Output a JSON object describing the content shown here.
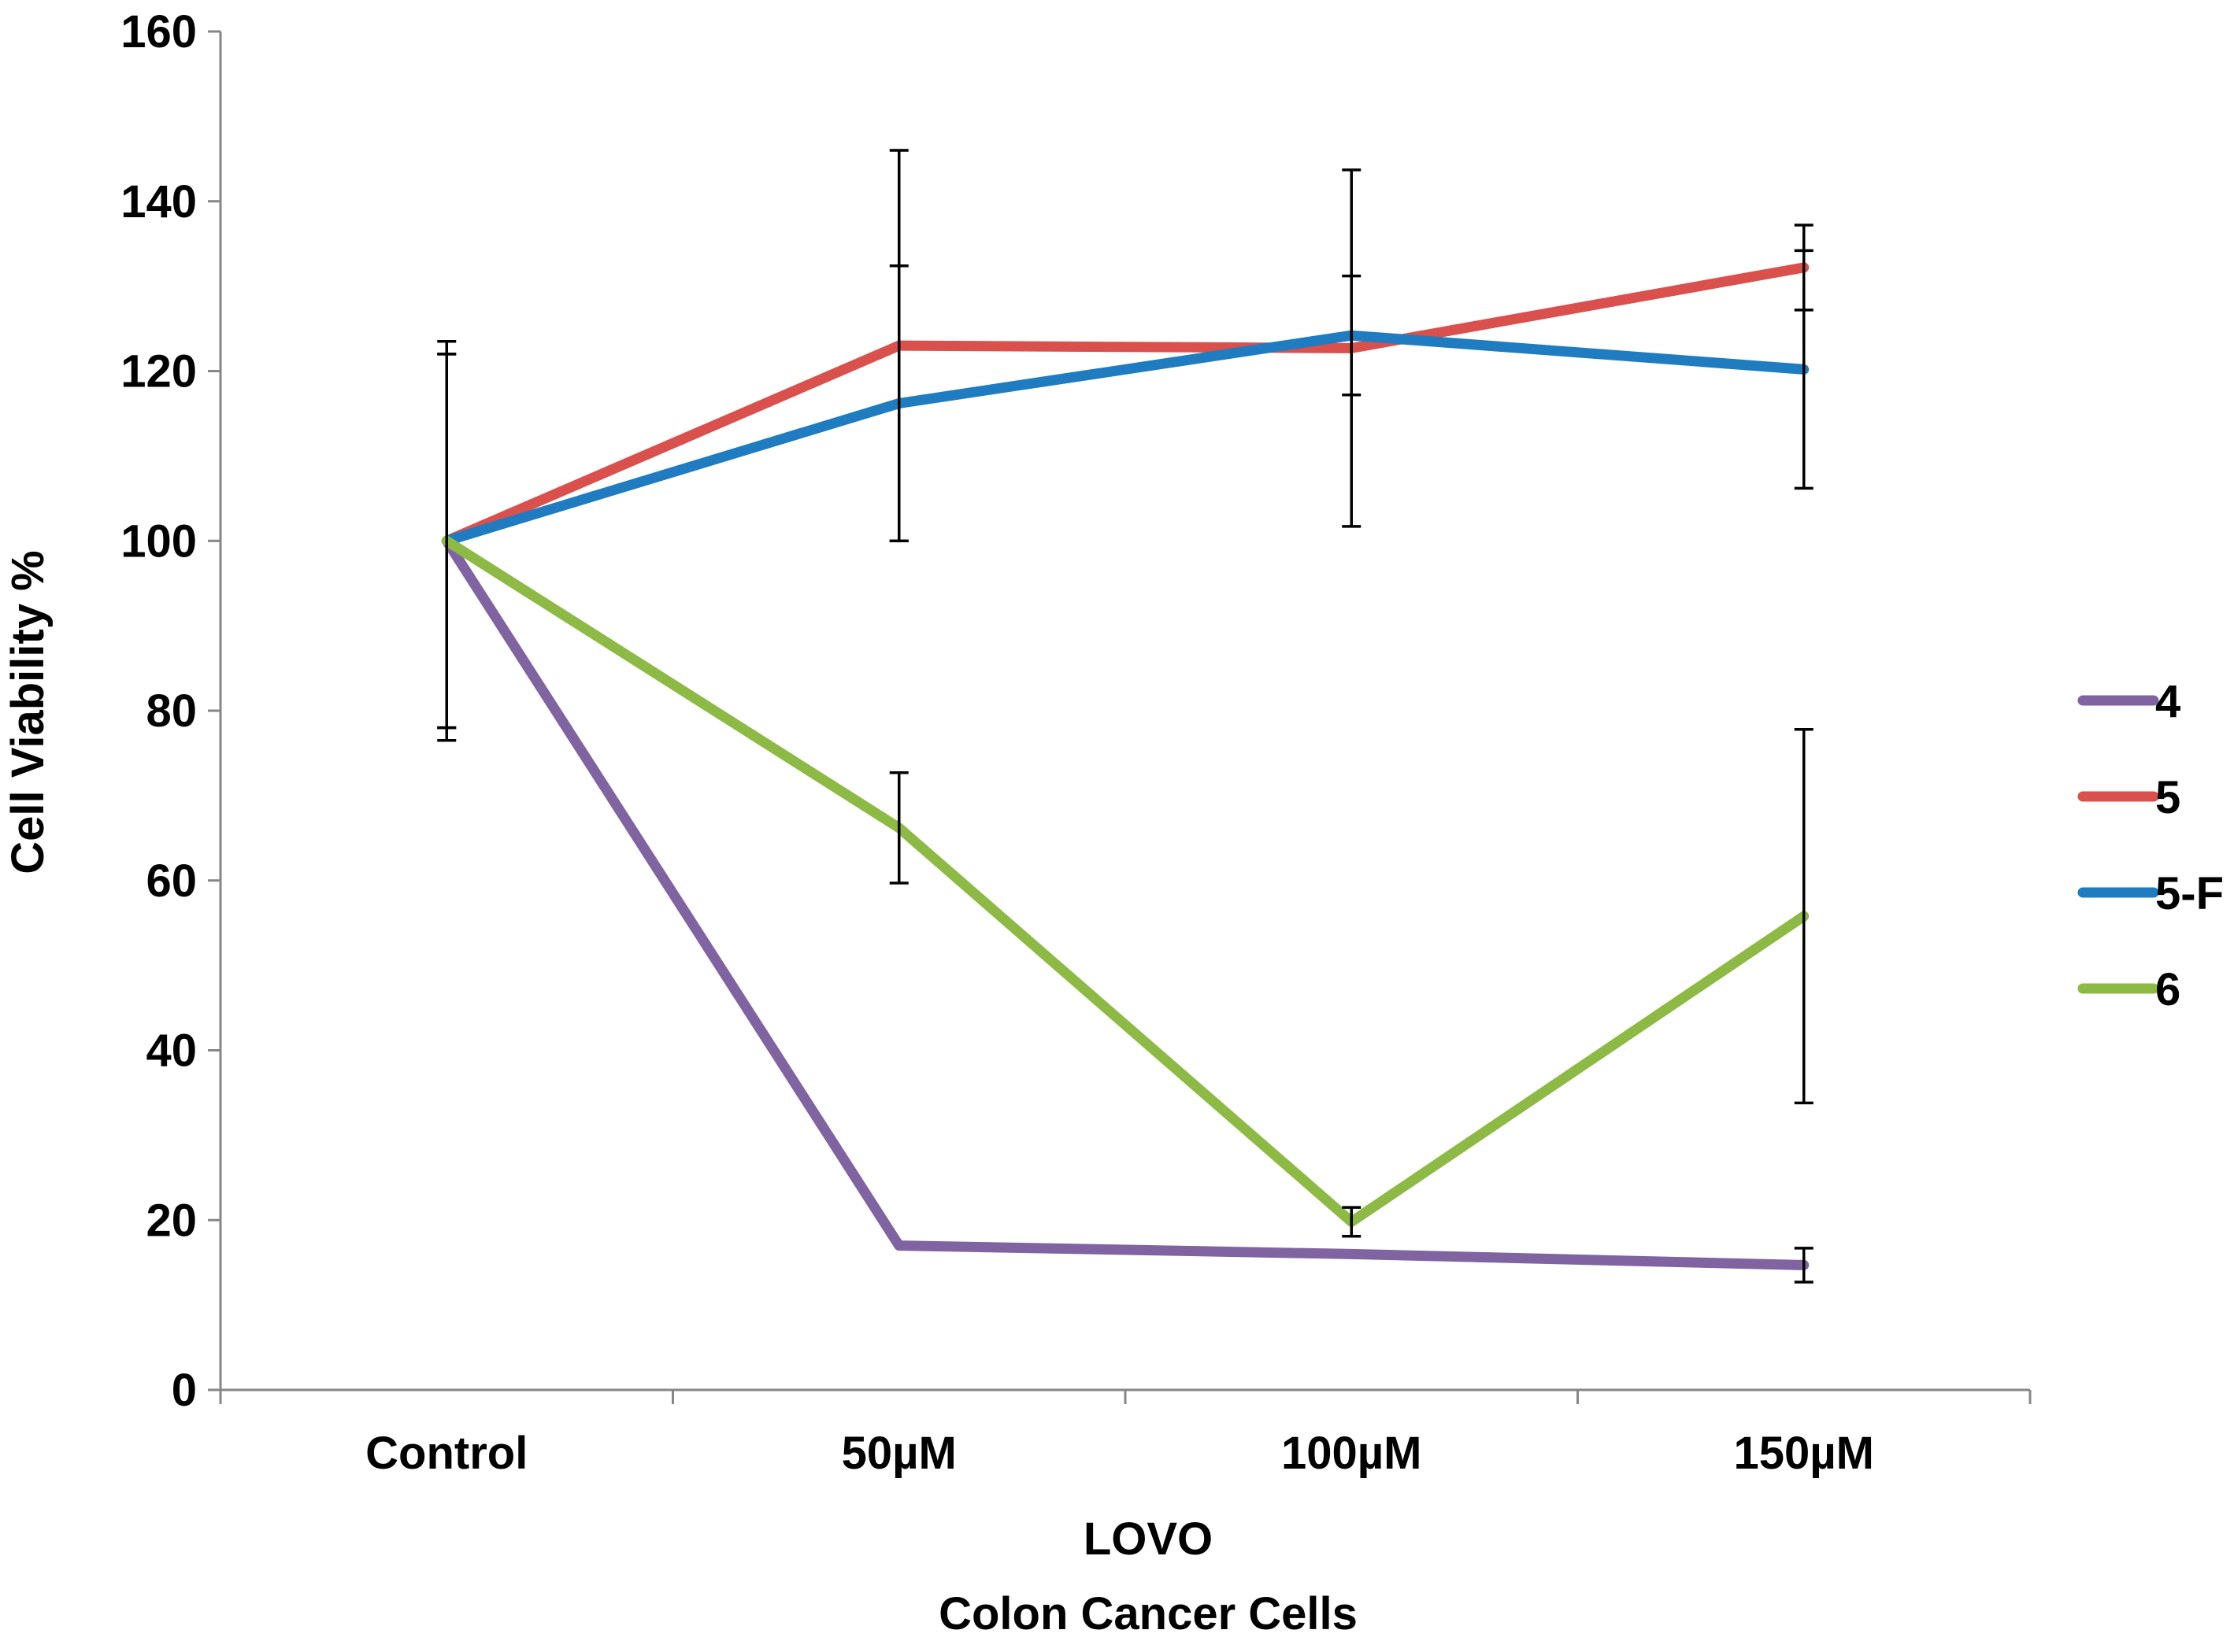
{
  "chart_data": {
    "type": "line",
    "title": "",
    "xlabel_lines": [
      "LOVO",
      "Colon Cancer Cells"
    ],
    "ylabel": "Cell Viability %",
    "ylim": [
      0,
      160
    ],
    "yticks": [
      "0",
      "20",
      "40",
      "60",
      "80",
      "100",
      "120",
      "140",
      "160"
    ],
    "ytick_values": [
      0,
      20,
      40,
      60,
      80,
      100,
      120,
      140,
      160
    ],
    "categories": [
      "Control",
      "50µM",
      "100µM",
      "150µM"
    ],
    "grid": false,
    "legend_position": "right",
    "series": [
      {
        "name": "4",
        "color": "#8064A2",
        "values": [
          100,
          17,
          16,
          14.7
        ],
        "errors": [
          null,
          null,
          null,
          2
        ]
      },
      {
        "name": "5",
        "color": "#D9504D",
        "values": [
          100,
          123,
          122.7,
          132.2
        ],
        "errors": [
          23.5,
          23,
          21,
          5
        ]
      },
      {
        "name": "5-F",
        "color": "#1F7CC0",
        "values": [
          100,
          116.2,
          124.2,
          120.2
        ],
        "errors": [
          22,
          16.2,
          7,
          14
        ]
      },
      {
        "name": "6",
        "color": "#8DBA45",
        "values": [
          100,
          66.2,
          19.8,
          55.8
        ],
        "errors": [
          22,
          6.5,
          1.7,
          22
        ]
      }
    ]
  }
}
